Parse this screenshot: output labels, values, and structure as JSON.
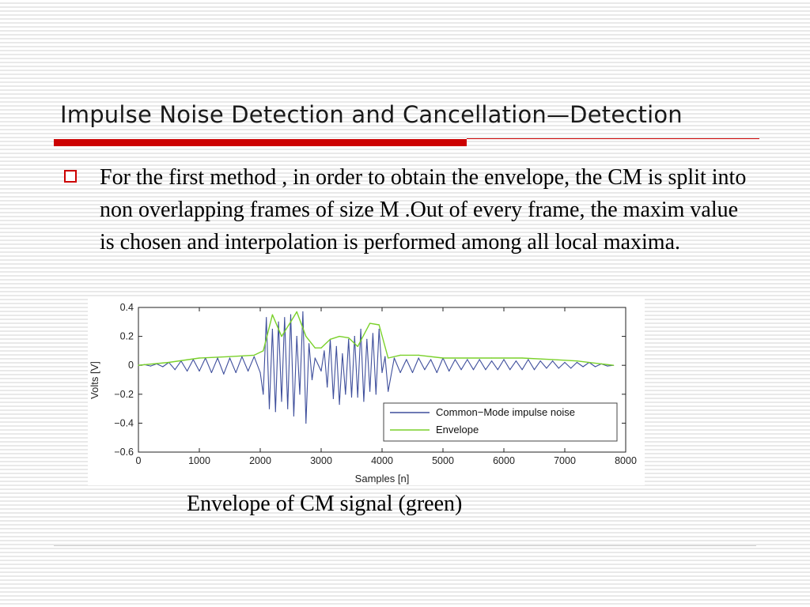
{
  "slide": {
    "title": "Impulse Noise Detection and Cancellation—Detection",
    "bullet": "For the first method , in order to obtain the envelope, the CM is split into non overlapping frames of size M .Out of every frame, the maxim value is chosen and interpolation is performed among all local maxima.",
    "caption": "Envelope of CM signal (green)"
  },
  "colors": {
    "accent": "#cc0000",
    "noise_series": "#3f4f9c",
    "envelope_series": "#7ad12a"
  },
  "chart_data": {
    "type": "line",
    "title": "",
    "xlabel": "Samples [n]",
    "ylabel": "Volts [V]",
    "xlim": [
      0,
      8000
    ],
    "ylim": [
      -0.6,
      0.4
    ],
    "xticks": [
      0,
      1000,
      2000,
      3000,
      4000,
      5000,
      6000,
      7000,
      8000
    ],
    "xtick_labels": [
      "0",
      "1000",
      "2000",
      "3000",
      "4000",
      "5000",
      "6000",
      "7000",
      "8000"
    ],
    "yticks": [
      0.4,
      0.2,
      0,
      -0.2,
      -0.4,
      -0.6
    ],
    "ytick_labels": [
      "0.4",
      "0.2",
      "0",
      "−0.2",
      "−0.4",
      "−0.6"
    ],
    "grid": false,
    "legend_position": "lower-right",
    "series": [
      {
        "name": "Common−Mode impulse noise",
        "color": "#3f4f9c",
        "x": [
          0,
          100,
          200,
          300,
          400,
          500,
          600,
          700,
          800,
          900,
          1000,
          1100,
          1200,
          1300,
          1400,
          1500,
          1600,
          1700,
          1800,
          1900,
          2000,
          2050,
          2100,
          2150,
          2200,
          2250,
          2300,
          2350,
          2400,
          2450,
          2500,
          2550,
          2600,
          2650,
          2700,
          2750,
          2800,
          2850,
          2900,
          3000,
          3050,
          3100,
          3150,
          3200,
          3250,
          3300,
          3350,
          3400,
          3450,
          3500,
          3550,
          3600,
          3650,
          3700,
          3750,
          3800,
          3850,
          3900,
          3950,
          4000,
          4050,
          4100,
          4200,
          4300,
          4400,
          4500,
          4600,
          4700,
          4800,
          4900,
          5000,
          5100,
          5200,
          5300,
          5400,
          5500,
          5600,
          5700,
          5800,
          5900,
          6000,
          6100,
          6200,
          6300,
          6400,
          6500,
          6600,
          6700,
          6800,
          6900,
          7000,
          7100,
          7200,
          7300,
          7400,
          7500,
          7600,
          7700,
          7800
        ],
        "y": [
          0,
          0.005,
          -0.005,
          0.01,
          -0.01,
          0.02,
          -0.03,
          0.03,
          -0.04,
          0.04,
          -0.04,
          0.05,
          -0.05,
          0.05,
          -0.06,
          0.05,
          -0.05,
          0.06,
          -0.04,
          0.06,
          -0.05,
          -0.2,
          0.33,
          -0.3,
          0.25,
          -0.32,
          0.3,
          -0.25,
          0.33,
          -0.3,
          0.35,
          -0.35,
          0.2,
          -0.2,
          0.37,
          -0.4,
          0.15,
          -0.1,
          0.05,
          -0.04,
          0.1,
          -0.15,
          0.18,
          -0.23,
          0.13,
          -0.27,
          0.08,
          -0.2,
          0.18,
          -0.22,
          0.2,
          -0.22,
          0.25,
          -0.25,
          0.18,
          -0.18,
          0.22,
          -0.2,
          0.25,
          -0.05,
          0.06,
          -0.18,
          0.05,
          -0.05,
          0.04,
          -0.05,
          0.05,
          -0.03,
          0.04,
          -0.05,
          0.05,
          -0.04,
          0.04,
          -0.03,
          0.04,
          -0.03,
          0.04,
          -0.03,
          0.03,
          -0.03,
          0.04,
          -0.03,
          0.03,
          -0.03,
          0.04,
          -0.03,
          0.03,
          -0.02,
          0.03,
          -0.02,
          0.02,
          -0.02,
          0.02,
          -0.01,
          0.02,
          -0.01,
          0.01,
          -0.005,
          0
        ]
      },
      {
        "name": "Envelope",
        "color": "#7ad12a",
        "x": [
          0,
          500,
          1000,
          1500,
          1900,
          2050,
          2200,
          2350,
          2500,
          2600,
          2750,
          2900,
          3000,
          3150,
          3300,
          3450,
          3600,
          3800,
          3950,
          4100,
          4300,
          4600,
          5000,
          5400,
          5800,
          6300,
          6800,
          7200,
          7600,
          7800
        ],
        "y": [
          0,
          0.02,
          0.05,
          0.06,
          0.07,
          0.1,
          0.35,
          0.2,
          0.3,
          0.37,
          0.2,
          0.12,
          0.12,
          0.18,
          0.2,
          0.19,
          0.13,
          0.29,
          0.28,
          0.05,
          0.07,
          0.07,
          0.05,
          0.05,
          0.05,
          0.05,
          0.04,
          0.03,
          0.01,
          0
        ]
      }
    ]
  }
}
